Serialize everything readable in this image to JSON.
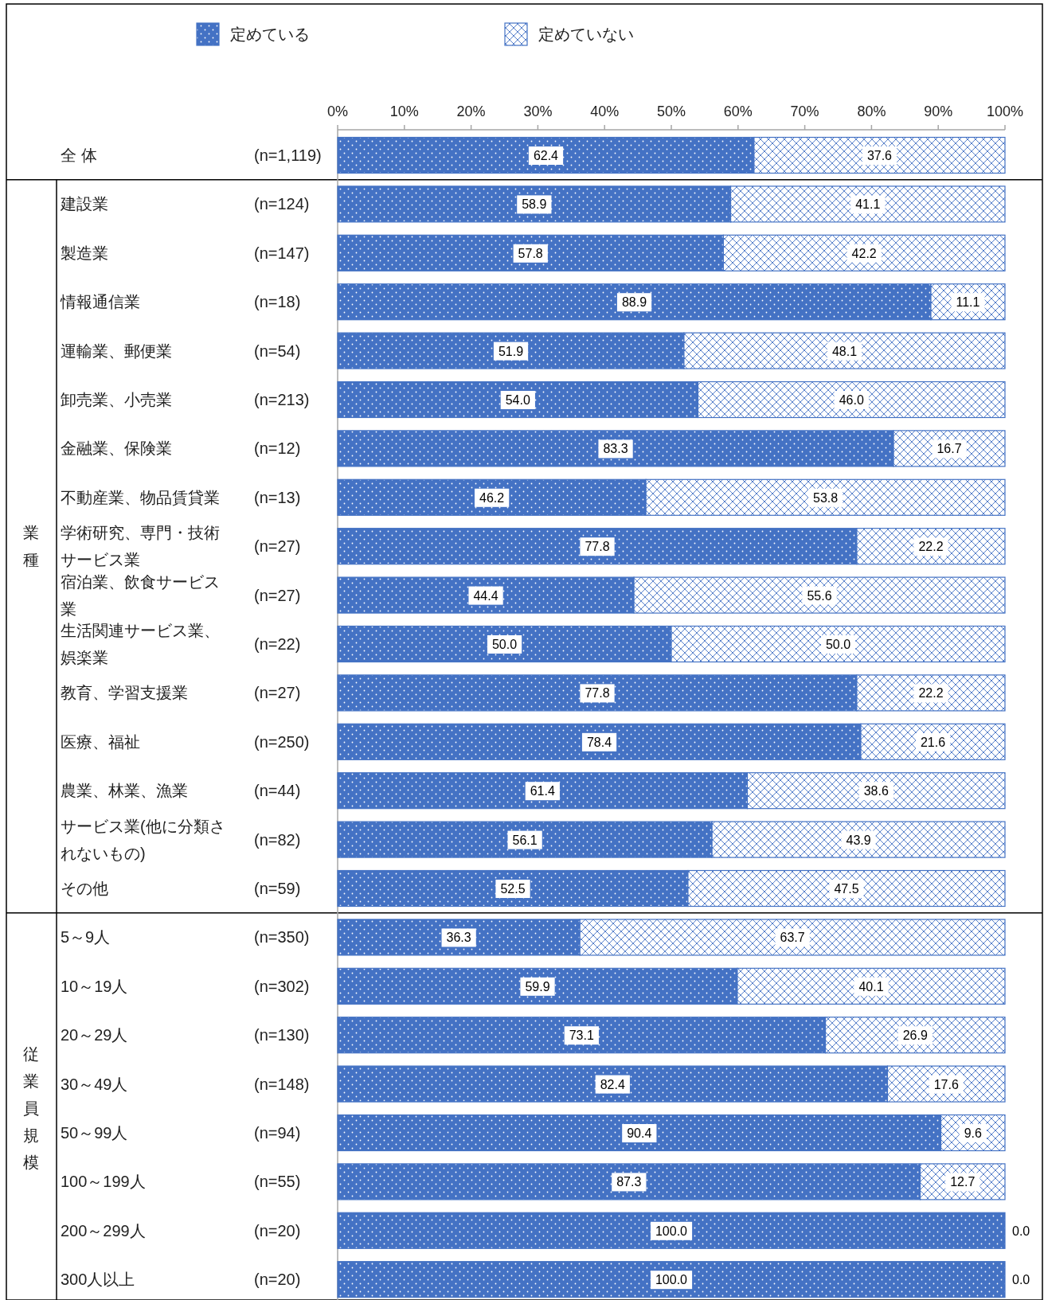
{
  "chart_data": {
    "type": "bar",
    "orientation": "horizontal",
    "stacked": true,
    "categories": [
      "全 体",
      "建設業",
      "製造業",
      "情報通信業",
      "運輸業、郵便業",
      "卸売業、小売業",
      "金融業、保険業",
      "不動産業、物品賃貸業",
      "学術研究、専門・技術サービス業",
      "宿泊業、飲食サービス業",
      "生活関連サービス業、娯楽業",
      "教育、学習支援業",
      "医療、福祉",
      "農業、林業、漁業",
      "サービス業(他に分類されないもの)",
      "その他",
      "5～9人",
      "10～19人",
      "20～29人",
      "30～49人",
      "50～99人",
      "100～199人",
      "200～299人",
      "300人以上"
    ],
    "y2_categories": [
      "(n=1,119)",
      "(n=124)",
      "(n=147)",
      "(n=18)",
      "(n=54)",
      "(n=213)",
      "(n=12)",
      "(n=13)",
      "(n=27)",
      "(n=27)",
      "(n=22)",
      "(n=27)",
      "(n=250)",
      "(n=44)",
      "(n=82)",
      "(n=59)",
      "(n=350)",
      "(n=302)",
      "(n=130)",
      "(n=148)",
      "(n=94)",
      "(n=55)",
      "(n=20)",
      "(n=20)"
    ],
    "series": [
      {
        "name": "定めている",
        "color": "#4472c4",
        "values": [
          62.4,
          58.9,
          57.8,
          88.9,
          51.9,
          54.0,
          83.3,
          46.2,
          77.8,
          44.4,
          50.0,
          77.8,
          78.4,
          61.4,
          56.1,
          52.5,
          36.3,
          59.9,
          73.1,
          82.4,
          90.4,
          87.3,
          100.0,
          100.0
        ],
        "value_labels": [
          "62.4",
          "58.9",
          "57.8",
          "88.9",
          "51.9",
          "54.0",
          "83.3",
          "46.2",
          "77.8",
          "44.4",
          "50.0",
          "77.8",
          "78.4",
          "61.4",
          "56.1",
          "52.5",
          "36.3",
          "59.9",
          "73.1",
          "82.4",
          "90.4",
          "87.3",
          "100.0",
          "100.0"
        ]
      },
      {
        "name": "定めていない",
        "color": "#4472c4",
        "values": [
          37.6,
          41.1,
          42.2,
          11.1,
          48.1,
          46.0,
          16.7,
          53.8,
          22.2,
          55.6,
          50.0,
          22.2,
          21.6,
          38.6,
          43.9,
          47.5,
          63.7,
          40.1,
          26.9,
          17.6,
          9.6,
          12.7,
          0.0,
          0.0
        ],
        "value_labels": [
          "37.6",
          "41.1",
          "42.2",
          "11.1",
          "48.1",
          "46.0",
          "16.7",
          "53.8",
          "22.2",
          "55.6",
          "50.0",
          "22.2",
          "21.6",
          "38.6",
          "43.9",
          "47.5",
          "63.7",
          "40.1",
          "26.9",
          "17.6",
          "9.6",
          "12.7",
          "0.0",
          "0.0"
        ]
      }
    ],
    "xlim": [
      0,
      100
    ],
    "xticks": [
      {
        "value": 0,
        "label": "0%"
      },
      {
        "value": 10,
        "label": "10%"
      },
      {
        "value": 20,
        "label": "20%"
      },
      {
        "value": 30,
        "label": "30%"
      },
      {
        "value": 40,
        "label": "40%"
      },
      {
        "value": 50,
        "label": "50%"
      },
      {
        "value": 60,
        "label": "60%"
      },
      {
        "value": 70,
        "label": "70%"
      },
      {
        "value": 80,
        "label": "80%"
      },
      {
        "value": 90,
        "label": "90%"
      },
      {
        "value": 100,
        "label": "100%"
      }
    ],
    "annotations": [
      "業種",
      "従業員規模"
    ],
    "legend": "top",
    "grid": false
  }
}
